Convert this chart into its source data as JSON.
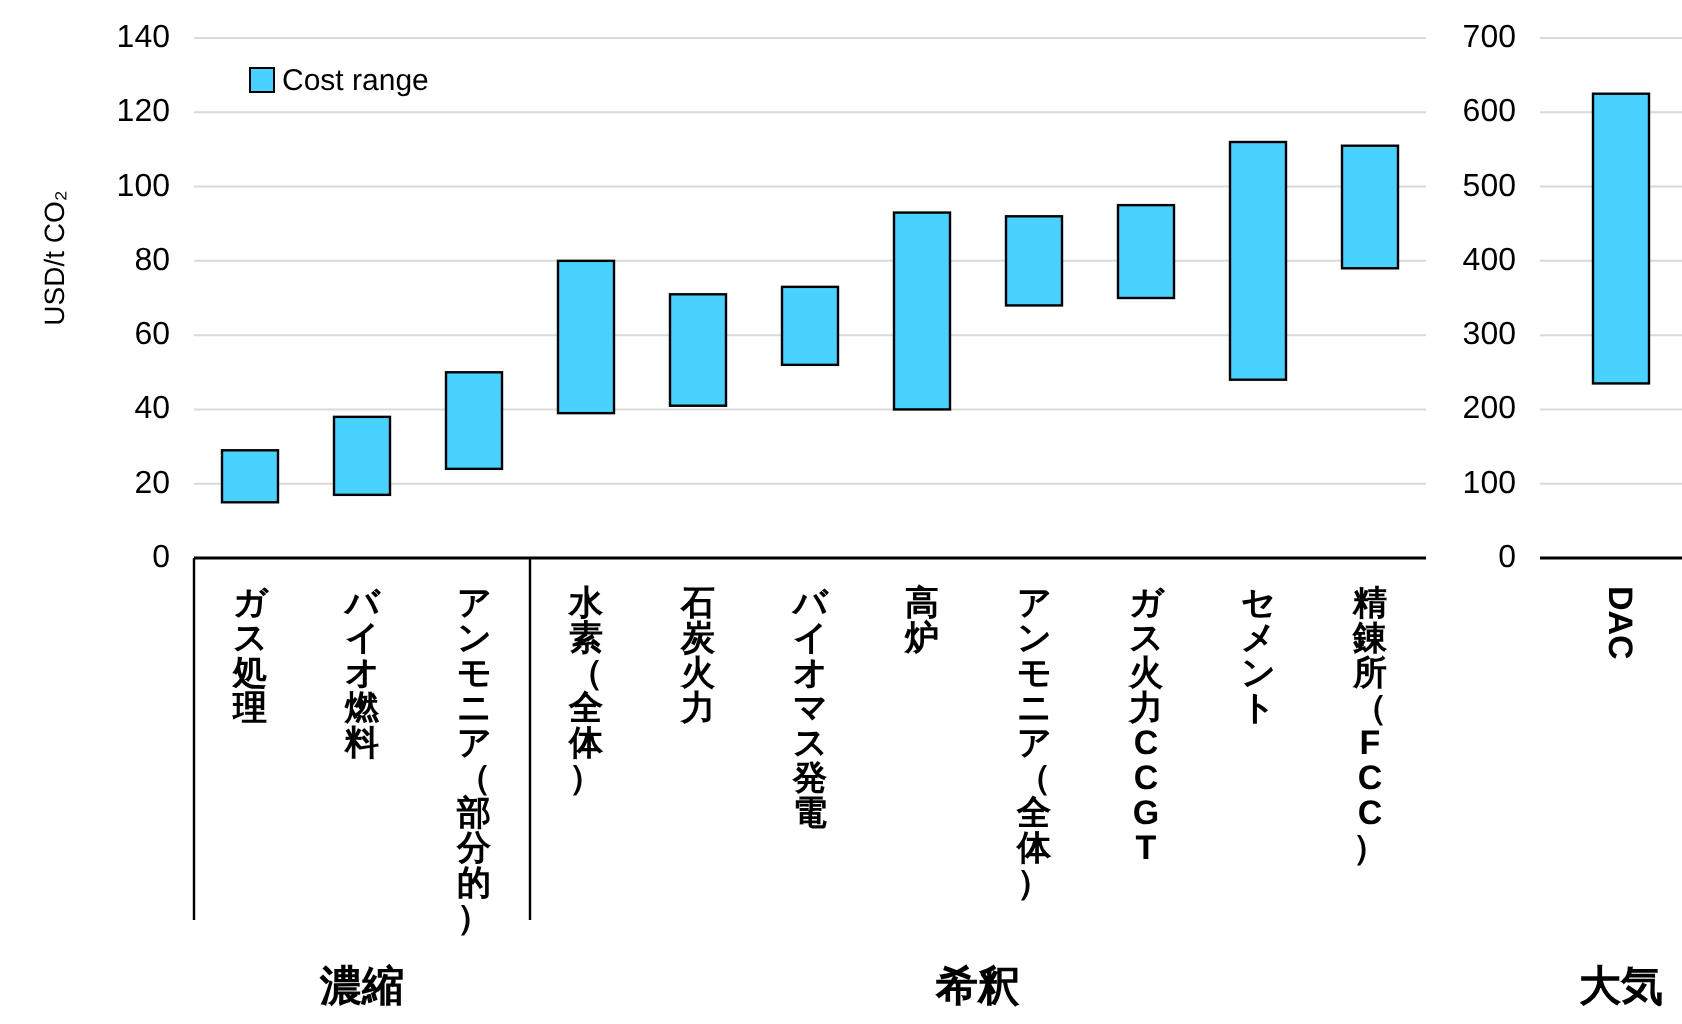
{
  "chart_data": [
    {
      "type": "bar",
      "ylabel": "USD/t CO₂",
      "categories": [
        "ガス処理",
        "バイオ燃料",
        "アンモニア（部分的）"
      ],
      "series": [
        {
          "name": "Cost range",
          "color": "#49d1ff",
          "values": [
            14,
            21,
            26
          ],
          "base": [
            15,
            17,
            24
          ]
        }
      ],
      "ylim": [
        0,
        140
      ],
      "yticks": [
        0,
        20,
        40,
        60,
        80,
        100,
        120,
        140
      ],
      "grid": "y",
      "legend": "top left",
      "annotations": [
        "濃縮"
      ]
    },
    {
      "type": "bar",
      "categories": [
        "水素（全体）",
        "石炭火力",
        "バイオマス発電",
        "高炉",
        "アンモニア（全体）",
        "ガス火力CCGT",
        "セメント",
        "精錬所（FCC）"
      ],
      "series": [
        {
          "color": "#49d1ff",
          "values": [
            41,
            30,
            21,
            53,
            24,
            25,
            64,
            33
          ],
          "base": [
            39,
            41,
            52,
            40,
            68,
            70,
            48,
            78
          ]
        }
      ],
      "ylim": [
        0,
        140
      ],
      "yticks": [
        0,
        20,
        40,
        60,
        80,
        100,
        120,
        140
      ],
      "grid": "y",
      "tick_labels": "x",
      "annotations": [
        "希釈"
      ]
    },
    {
      "type": "bar",
      "categories": [
        "DAC"
      ],
      "series": [
        {
          "color": "#49d1ff",
          "values": [
            390
          ],
          "base": [
            235
          ]
        }
      ],
      "ylim": [
        0,
        700
      ],
      "yticks": [
        0,
        100,
        200,
        300,
        400,
        500,
        600,
        700
      ],
      "grid": "y",
      "annotations": [
        "大気"
      ]
    }
  ]
}
